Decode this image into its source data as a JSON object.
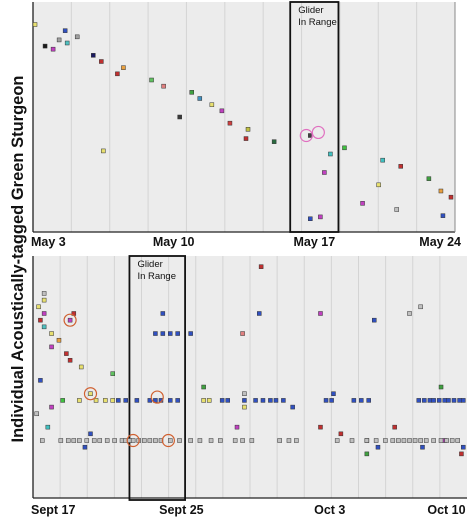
{
  "ylabel": "Individual Acoustically-tagged Green Sturgeon",
  "chart_data": [
    {
      "type": "scatter",
      "title": "",
      "xlabel": "",
      "ylabel": "Individual Acoustically-tagged Green Sturgeon",
      "x_ticks": [
        "May 3",
        "May 10",
        "May 17",
        "May 24"
      ],
      "x_tick_days": [
        3,
        10,
        17,
        24
      ],
      "xlim": [
        3,
        24
      ],
      "glider_window": {
        "label_line1": "Glider",
        "label_line2": "In Range",
        "start": 15.8,
        "end": 18.2
      },
      "detections": [
        {
          "day": 3.1,
          "fish": 33,
          "color": "#e8e070"
        },
        {
          "day": 4.6,
          "fish": 32,
          "color": "#3050c0"
        },
        {
          "day": 4.7,
          "fish": 30,
          "color": "#50c0c0"
        },
        {
          "day": 4.0,
          "fish": 29,
          "color": "#c040c0"
        },
        {
          "day": 6.0,
          "fish": 28,
          "color": "#1a1a60"
        },
        {
          "day": 6.4,
          "fish": 27,
          "color": "#c03030"
        },
        {
          "day": 7.5,
          "fish": 26,
          "color": "#e8a040"
        },
        {
          "day": 7.2,
          "fish": 25,
          "color": "#c03030"
        },
        {
          "day": 8.9,
          "fish": 24,
          "color": "#60c060"
        },
        {
          "day": 9.5,
          "fish": 23,
          "color": "#e08080"
        },
        {
          "day": 10.9,
          "fish": 22,
          "color": "#40a040"
        },
        {
          "day": 11.3,
          "fish": 21,
          "color": "#4090c0"
        },
        {
          "day": 11.9,
          "fish": 20,
          "color": "#e8e070"
        },
        {
          "day": 12.4,
          "fish": 19,
          "color": "#c040c0"
        },
        {
          "day": 10.3,
          "fish": 18,
          "color": "#3a3a3a"
        },
        {
          "day": 12.8,
          "fish": 17,
          "color": "#d04040"
        },
        {
          "day": 13.7,
          "fish": 16,
          "color": "#c0c040"
        },
        {
          "day": 16.8,
          "fish": 15,
          "color": "#404040"
        },
        {
          "day": 15.0,
          "fish": 14,
          "color": "#2a6a40"
        },
        {
          "day": 18.5,
          "fish": 13,
          "color": "#40c040"
        },
        {
          "day": 17.8,
          "fish": 12,
          "color": "#40c0c0"
        },
        {
          "day": 20.4,
          "fish": 11,
          "color": "#40c0c0"
        },
        {
          "day": 21.3,
          "fish": 10,
          "color": "#c03030"
        },
        {
          "day": 17.5,
          "fish": 9,
          "color": "#c040c0"
        },
        {
          "day": 22.7,
          "fish": 8,
          "color": "#40a040"
        },
        {
          "day": 20.2,
          "fish": 7,
          "color": "#e8e070"
        },
        {
          "day": 23.3,
          "fish": 6,
          "color": "#e8a040"
        },
        {
          "day": 23.8,
          "fish": 5,
          "color": "#c03030"
        },
        {
          "day": 19.4,
          "fish": 4,
          "color": "#c040c0"
        },
        {
          "day": 21.1,
          "fish": 3,
          "color": "#c0c0c0"
        },
        {
          "day": 23.4,
          "fish": 2,
          "color": "#3050c0"
        },
        {
          "day": 4.3,
          "fish": 30.5,
          "color": "#a0a0a0"
        },
        {
          "day": 3.6,
          "fish": 29.5,
          "color": "#1a1a1a"
        },
        {
          "day": 5.2,
          "fish": 31,
          "color": "#a0a0a0"
        },
        {
          "day": 13.6,
          "fish": 14.5,
          "color": "#c03030"
        },
        {
          "day": 16.8,
          "fish": 1.5,
          "color": "#3050c0"
        },
        {
          "day": 17.3,
          "fish": 1.8,
          "color": "#c040c0"
        },
        {
          "day": 6.5,
          "fish": 12.5,
          "color": "#e8e070"
        }
      ],
      "highlighted": [
        {
          "day": 16.6,
          "fish": 15
        },
        {
          "day": 17.2,
          "fish": 15.5
        }
      ]
    },
    {
      "type": "scatter",
      "title": "",
      "xlabel": "",
      "ylabel": "Individual Acoustically-tagged Green Sturgeon",
      "x_ticks": [
        "Sept 17",
        "Sept 25",
        "Oct 3",
        "Oct 10"
      ],
      "x_tick_days": [
        0,
        8,
        16,
        23
      ],
      "xlim": [
        0,
        23.4
      ],
      "glider_window": {
        "label_line1": "Glider",
        "label_line2": "In Range",
        "start": 5.2,
        "end": 8.2
      },
      "detections": [
        {
          "day": 0.6,
          "fish": 30,
          "color": "#c0c0c0"
        },
        {
          "day": 0.6,
          "fish": 29,
          "color": "#e8e070"
        },
        {
          "day": 0.3,
          "fish": 28,
          "color": "#e8e070"
        },
        {
          "day": 0.6,
          "fish": 27,
          "color": "#c040c0"
        },
        {
          "day": 2.2,
          "fish": 27,
          "color": "#c03030"
        },
        {
          "day": 0.4,
          "fish": 26,
          "color": "#c03030"
        },
        {
          "day": 2.0,
          "fish": 26,
          "color": "#c040c0"
        },
        {
          "day": 0.6,
          "fish": 25,
          "color": "#50c0c0"
        },
        {
          "day": 1.0,
          "fish": 24,
          "color": "#e8e070"
        },
        {
          "day": 1.4,
          "fish": 23,
          "color": "#e8a040"
        },
        {
          "day": 1.0,
          "fish": 22,
          "color": "#c040c0"
        },
        {
          "day": 1.8,
          "fish": 21,
          "color": "#c03030"
        },
        {
          "day": 2.0,
          "fish": 20,
          "color": "#c03030"
        },
        {
          "day": 2.6,
          "fish": 19,
          "color": "#e8e070"
        },
        {
          "day": 4.3,
          "fish": 18,
          "color": "#60c060"
        },
        {
          "day": 0.4,
          "fish": 17,
          "color": "#3050c0"
        },
        {
          "day": 3.1,
          "fish": 15,
          "color": "#e8e070"
        },
        {
          "day": 1.6,
          "fish": 14,
          "color": "#40c040"
        },
        {
          "day": 1.0,
          "fish": 13,
          "color": "#c040c0"
        },
        {
          "day": 0.2,
          "fish": 12,
          "color": "#c0c0c0"
        },
        {
          "day": 0.8,
          "fish": 10,
          "color": "#40c0c0"
        },
        {
          "day": 3.1,
          "fish": 9,
          "color": "#3050c0"
        },
        {
          "day": 7.0,
          "fish": 27,
          "color": "#3050c0"
        },
        {
          "day": 12.2,
          "fish": 27,
          "color": "#3050c0"
        },
        {
          "day": 11.3,
          "fish": 24,
          "color": "#e08080"
        },
        {
          "day": 12.3,
          "fish": 34,
          "color": "#c03030"
        },
        {
          "day": 15.5,
          "fish": 27,
          "color": "#c040c0"
        },
        {
          "day": 18.4,
          "fish": 26,
          "color": "#3050c0"
        },
        {
          "day": 20.9,
          "fish": 28,
          "color": "#c0c0c0"
        },
        {
          "day": 20.3,
          "fish": 27,
          "color": "#c0c0c0"
        },
        {
          "day": 9.2,
          "fish": 16,
          "color": "#40a040"
        },
        {
          "day": 11.4,
          "fish": 15,
          "color": "#c0c0c0"
        },
        {
          "day": 16.2,
          "fish": 15,
          "color": "#3050c0"
        },
        {
          "day": 22.0,
          "fish": 16,
          "color": "#40a040"
        },
        {
          "day": 11.4,
          "fish": 13,
          "color": "#e8e070"
        },
        {
          "day": 14.0,
          "fish": 13,
          "color": "#3050c0"
        },
        {
          "day": 11.0,
          "fish": 10,
          "color": "#c040c0"
        },
        {
          "day": 15.5,
          "fish": 10,
          "color": "#c03030"
        },
        {
          "day": 19.5,
          "fish": 10,
          "color": "#c03030"
        },
        {
          "day": 16.6,
          "fish": 9,
          "color": "#c03030"
        },
        {
          "day": 18.0,
          "fish": 8,
          "color": "#e8a040"
        },
        {
          "day": 18.0,
          "fish": 6,
          "color": "#40a040"
        },
        {
          "day": 22.2,
          "fish": 8,
          "color": "#c040c0"
        },
        {
          "day": 23.1,
          "fish": 6,
          "color": "#c03030"
        }
      ],
      "dense_rows": [
        {
          "fish": 14,
          "color": "#3050c0",
          "days": [
            4.6,
            5.0,
            5.6,
            6.3,
            6.6,
            6.9,
            7.4,
            7.8,
            10.2,
            10.5,
            11.4,
            12.0,
            12.4,
            12.8,
            13.1,
            13.5,
            15.8,
            16.1,
            17.3,
            17.7,
            18.1,
            20.8,
            21.1,
            21.4,
            21.6,
            21.9,
            22.2,
            22.4,
            22.7,
            23.0,
            23.2
          ]
        },
        {
          "fish": 14,
          "color": "#e8e070",
          "days": [
            2.5,
            3.4,
            3.9,
            4.3,
            9.2,
            9.5
          ]
        },
        {
          "fish": 8,
          "color": "#c0c0c0",
          "days": [
            0.5,
            1.5,
            1.9,
            2.2,
            2.5,
            2.9,
            3.3,
            3.6,
            4.0,
            4.4,
            4.8,
            5.0,
            5.2,
            5.4,
            5.7,
            6.0,
            6.3,
            6.6,
            6.9,
            7.4,
            7.9,
            8.5,
            9.0,
            9.6,
            10.1,
            10.9,
            11.3,
            11.8,
            13.3,
            13.8,
            14.2,
            16.4,
            17.2,
            18.0,
            18.5,
            19.0,
            19.4,
            19.7,
            20.0,
            20.3,
            20.6,
            20.9,
            21.2,
            21.6,
            22.0,
            22.3,
            22.6,
            22.9
          ]
        },
        {
          "fish": 24,
          "color": "#3050c0",
          "days": [
            6.6,
            7.0,
            7.4,
            7.8,
            8.5
          ]
        },
        {
          "fish": 7,
          "color": "#3050c0",
          "days": [
            2.8,
            18.6,
            21.0,
            23.2
          ]
        }
      ],
      "highlighted": [
        {
          "day": 3.1,
          "fish": 15
        },
        {
          "day": 6.7,
          "fish": 14.5
        },
        {
          "day": 5.4,
          "fish": 8
        },
        {
          "day": 7.3,
          "fish": 8
        },
        {
          "day": 2.0,
          "fish": 26
        }
      ]
    }
  ]
}
